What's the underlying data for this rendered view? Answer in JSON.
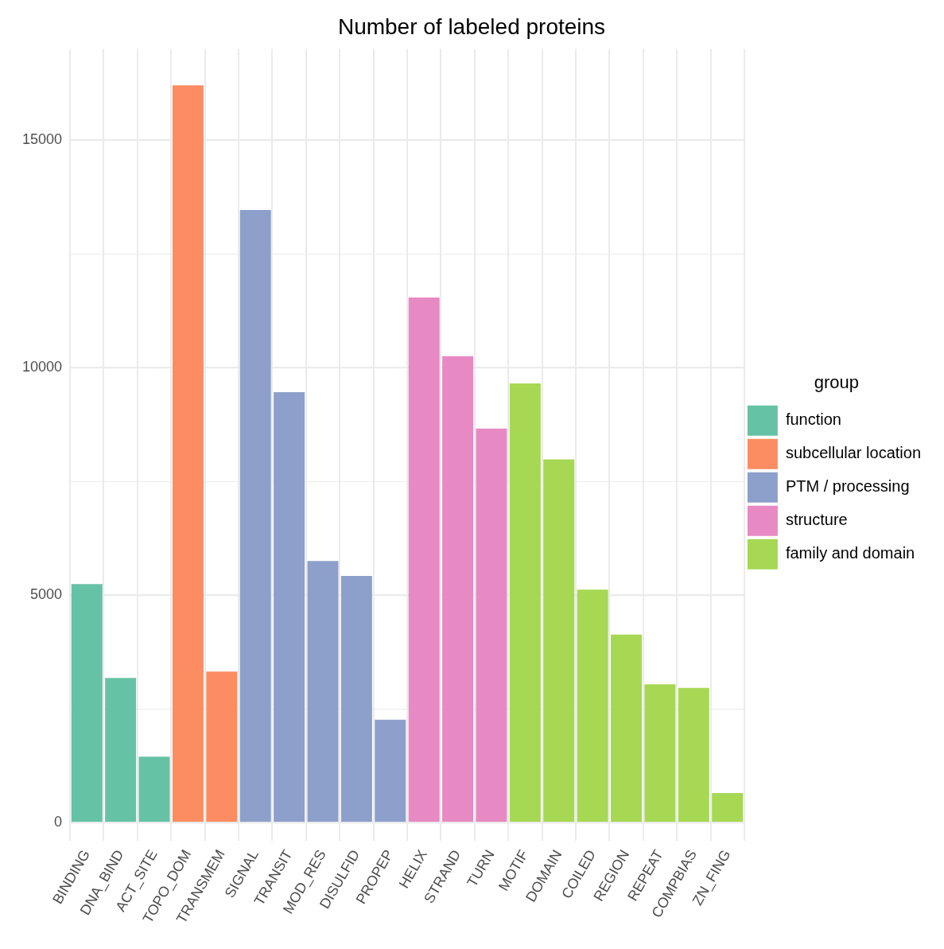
{
  "chart_data": {
    "type": "bar",
    "title": "Number of labeled proteins",
    "legend_title": "group",
    "categories": [
      "BINDING",
      "DNA_BIND",
      "ACT_SITE",
      "TOPO_DOM",
      "TRANSMEM",
      "SIGNAL",
      "TRANSIT",
      "MOD_RES",
      "DISULFID",
      "PROPEP",
      "HELIX",
      "STRAND",
      "TURN",
      "MOTIF",
      "DOMAIN",
      "COILED",
      "REGION",
      "REPEAT",
      "COMPBIAS",
      "ZN_FING"
    ],
    "series": [
      {
        "name": "function",
        "color": "#66c2a5",
        "values": [
          5240,
          3180,
          1450,
          null,
          null,
          null,
          null,
          null,
          null,
          null,
          null,
          null,
          null,
          null,
          null,
          null,
          null,
          null,
          null,
          null
        ]
      },
      {
        "name": "subcellular location",
        "color": "#fc8d62",
        "values": [
          null,
          null,
          null,
          16200,
          3320,
          null,
          null,
          null,
          null,
          null,
          null,
          null,
          null,
          null,
          null,
          null,
          null,
          null,
          null,
          null
        ]
      },
      {
        "name": "PTM / processing",
        "color": "#8da0cb",
        "values": [
          null,
          null,
          null,
          null,
          null,
          13460,
          9460,
          5750,
          5420,
          2260,
          null,
          null,
          null,
          null,
          null,
          null,
          null,
          null,
          null,
          null
        ]
      },
      {
        "name": "structure",
        "color": "#e78ac3",
        "values": [
          null,
          null,
          null,
          null,
          null,
          null,
          null,
          null,
          null,
          null,
          11540,
          10250,
          8660,
          null,
          null,
          null,
          null,
          null,
          null,
          null
        ]
      },
      {
        "name": "family and domain",
        "color": "#a6d854",
        "values": [
          null,
          null,
          null,
          null,
          null,
          null,
          null,
          null,
          null,
          null,
          null,
          null,
          null,
          9650,
          7980,
          5120,
          4130,
          3040,
          2960,
          650
        ]
      }
    ],
    "ylim": [
      -400,
      17000
    ],
    "yticks": [
      0,
      {
        "value": 2500,
        "label": null
      },
      5000,
      {
        "value": 7500,
        "label": null
      },
      10000,
      {
        "value": 12500,
        "label": null
      },
      15000
    ],
    "grid": true,
    "legend": "right"
  }
}
